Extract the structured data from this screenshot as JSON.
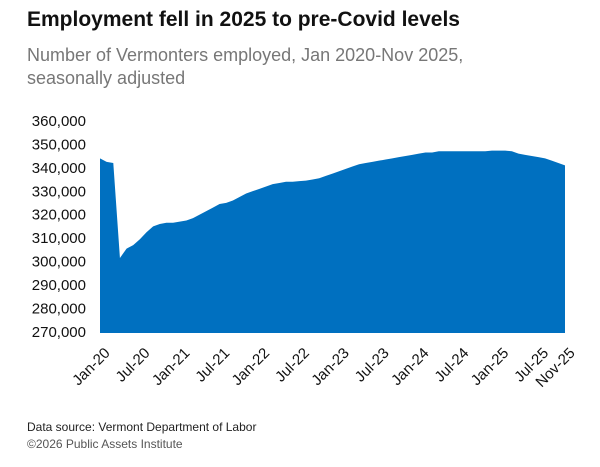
{
  "chart_data": {
    "type": "area",
    "title": "Employment fell in 2025 to pre-Covid levels",
    "subtitle": "Number of Vermonters employed, Jan 2020-Nov 2025, seasonally adjusted",
    "source": "Data source: Vermont Department of Labor",
    "credit": "©2026 Public Assets Institute",
    "categories": [
      "Jan-20",
      null,
      null,
      null,
      null,
      null,
      "Jul-20",
      null,
      null,
      null,
      null,
      null,
      "Jan-21",
      null,
      null,
      null,
      null,
      null,
      "Jul-21",
      null,
      null,
      null,
      null,
      null,
      "Jan-22",
      null,
      null,
      null,
      null,
      null,
      "Jul-22",
      null,
      null,
      null,
      null,
      null,
      "Jan-23",
      null,
      null,
      null,
      null,
      null,
      "Jul-23",
      null,
      null,
      null,
      null,
      null,
      "Jan-24",
      null,
      null,
      null,
      null,
      null,
      "Jul-24",
      null,
      null,
      null,
      null,
      null,
      "Jan-25",
      null,
      null,
      null,
      null,
      null,
      "Jul-25",
      null,
      null,
      null,
      "Nov-25"
    ],
    "values": [
      344500,
      343000,
      342500,
      302000,
      306000,
      307500,
      310000,
      313000,
      315500,
      316500,
      317000,
      317000,
      317500,
      318000,
      319000,
      320500,
      322000,
      323500,
      325000,
      325500,
      326500,
      328000,
      329500,
      330500,
      331500,
      332500,
      333500,
      334000,
      334500,
      334500,
      334800,
      335000,
      335500,
      336000,
      337000,
      338000,
      339000,
      340000,
      341000,
      342000,
      342500,
      343000,
      343500,
      344000,
      344500,
      345000,
      345500,
      346000,
      346500,
      347000,
      347000,
      347500,
      347500,
      347500,
      347500,
      347500,
      347500,
      347500,
      347500,
      347800,
      347800,
      347800,
      347500,
      346500,
      346000,
      345500,
      345000,
      344500,
      343500,
      342500,
      341500
    ],
    "color": "#0070c0",
    "ylim": [
      270000,
      360000
    ],
    "yticks": [
      {
        "value": 270000,
        "label": "270,000"
      },
      {
        "value": 280000,
        "label": "280,000"
      },
      {
        "value": 290000,
        "label": "290,000"
      },
      {
        "value": 300000,
        "label": "300,000"
      },
      {
        "value": 310000,
        "label": "310,000"
      },
      {
        "value": 320000,
        "label": "320,000"
      },
      {
        "value": 330000,
        "label": "330,000"
      },
      {
        "value": 340000,
        "label": "340,000"
      },
      {
        "value": 350000,
        "label": "350,000"
      },
      {
        "value": 360000,
        "label": "360,000"
      }
    ],
    "grid": false
  }
}
